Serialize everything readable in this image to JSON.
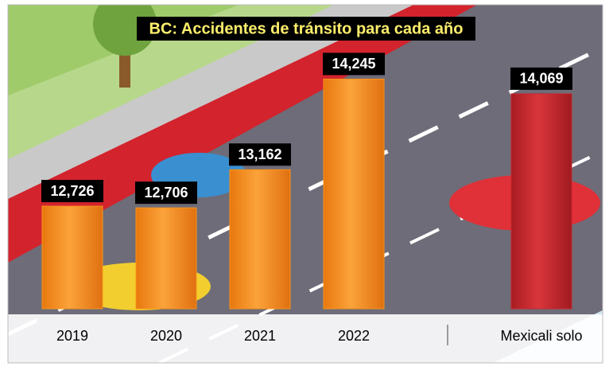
{
  "chart_data": {
    "type": "bar",
    "title": "BC: Accidentes de tránsito para cada año",
    "categories": [
      "2019",
      "2020",
      "2021",
      "2022",
      "Mexicali solo"
    ],
    "values": [
      12726,
      12706,
      13162,
      14245,
      14069
    ],
    "value_labels": [
      "12,726",
      "12,706",
      "13,162",
      "14,245",
      "14,069"
    ],
    "colors": [
      "#f7941d",
      "#f7941d",
      "#f7941d",
      "#f7941d",
      "#c8262c"
    ],
    "ylim": [
      11500,
      15000
    ]
  }
}
